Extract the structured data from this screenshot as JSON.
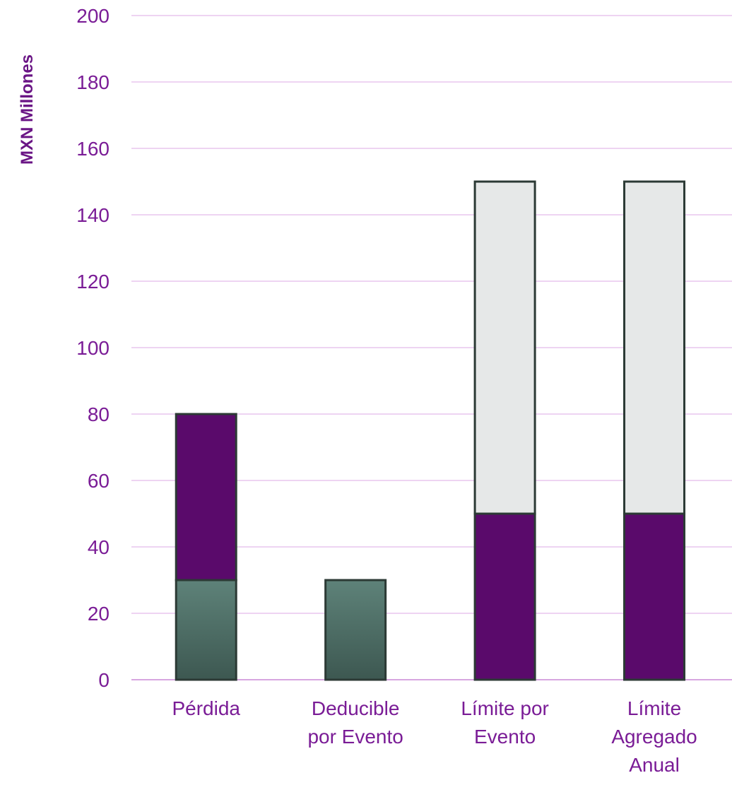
{
  "chart_data": {
    "type": "bar",
    "stacked": true,
    "title": "",
    "xlabel": "",
    "ylabel": "MXN Millones",
    "ylim": [
      0,
      200
    ],
    "ytick_step": 20,
    "yticks": [
      "0",
      "20",
      "40",
      "60",
      "80",
      "100",
      "120",
      "140",
      "160",
      "180",
      "200"
    ],
    "grid": true,
    "legend": "none",
    "categories": [
      [
        "Pérdida"
      ],
      [
        "Deducible",
        "por Evento"
      ],
      [
        "Límite por",
        "Evento"
      ],
      [
        "Límite",
        "Agregado",
        "Anual"
      ]
    ],
    "series": [
      {
        "values": [
          30,
          30,
          0,
          0
        ],
        "color": "#557a70"
      },
      {
        "values": [
          50,
          0,
          50,
          50
        ],
        "color": "#5a0a6b"
      },
      {
        "values": [
          0,
          0,
          100,
          100
        ],
        "color": "#e6e8e8"
      }
    ]
  },
  "colors": {
    "text": "#7a1c96",
    "grid": "#e9c6ee",
    "axis": "#d7a6e0",
    "bar_outline": "#2c3a35",
    "title": "#6a1585"
  }
}
